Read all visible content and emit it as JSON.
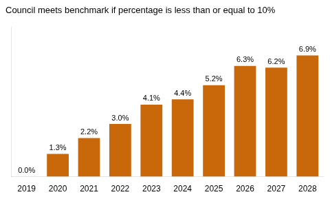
{
  "chart_data": {
    "type": "bar",
    "title": "Council meets benchmark if percentage is less than or equal to 10%",
    "categories": [
      "2019",
      "2020",
      "2021",
      "2022",
      "2023",
      "2024",
      "2025",
      "2026",
      "2027",
      "2028"
    ],
    "values": [
      0.0,
      1.3,
      2.2,
      3.0,
      4.1,
      4.4,
      5.2,
      6.3,
      6.2,
      6.9
    ],
    "value_labels": [
      "0.0%",
      "1.3%",
      "2.2%",
      "3.0%",
      "4.1%",
      "4.4%",
      "5.2%",
      "6.3%",
      "6.2%",
      "6.9%"
    ],
    "data_labels": true,
    "color": "#C8680A",
    "ylim": [
      0,
      8.5
    ],
    "grid": false,
    "tick_labels": "x"
  }
}
